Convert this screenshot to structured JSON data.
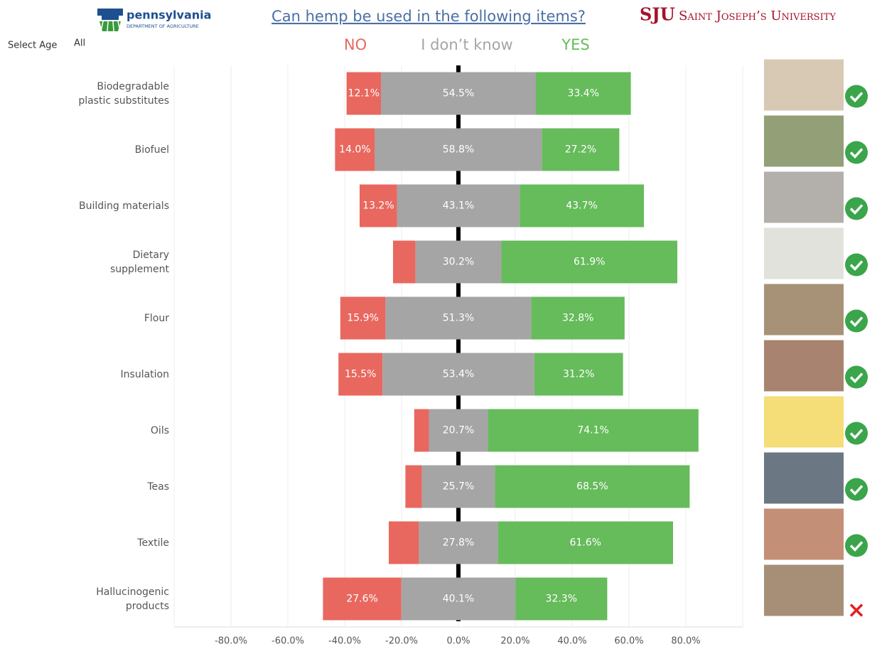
{
  "header": {
    "logo_left": "pennsylvania",
    "logo_left_sub": "DEPARTMENT OF AGRICULTURE",
    "logo_right": "SJU",
    "logo_right_name": "Saint Joseph’s University"
  },
  "filter": {
    "label": "Select Age",
    "value": "All"
  },
  "chart_data": {
    "type": "bar",
    "orientation": "horizontal",
    "layout": "diverging",
    "title": "Can hemp be used in the following items?",
    "categories": [
      "Biodegradable\nplastic substitutes",
      "Biofuel",
      "Building materials",
      "Dietary\nsupplement",
      "Flour",
      "Insulation",
      "Oils",
      "Teas",
      "Textile",
      "Hallucinogenic\nproducts"
    ],
    "series": [
      {
        "name": "NO",
        "color": "#e8685f",
        "values": [
          12.1,
          14.0,
          13.2,
          7.9,
          15.9,
          15.5,
          5.2,
          5.8,
          10.6,
          27.6
        ],
        "value_labels": [
          "12.1%",
          "14.0%",
          "13.2%",
          null,
          "15.9%",
          "15.5%",
          null,
          null,
          null,
          "27.6%"
        ]
      },
      {
        "name": "I don’t know",
        "color": "#a5a5a5",
        "values": [
          54.5,
          58.8,
          43.1,
          30.2,
          51.3,
          53.4,
          20.7,
          25.7,
          27.8,
          40.1
        ],
        "value_labels": [
          "54.5%",
          "58.8%",
          "43.1%",
          "30.2%",
          "51.3%",
          "53.4%",
          "20.7%",
          "25.7%",
          "27.8%",
          "40.1%"
        ]
      },
      {
        "name": "YES",
        "color": "#66bb5b",
        "values": [
          33.4,
          27.2,
          43.7,
          61.9,
          32.8,
          31.2,
          74.1,
          68.5,
          61.6,
          32.3
        ],
        "value_labels": [
          "33.4%",
          "27.2%",
          "43.7%",
          "61.9%",
          "32.8%",
          "31.2%",
          "74.1%",
          "68.5%",
          "61.6%",
          "32.3%"
        ]
      }
    ],
    "xlim": [
      -100,
      100
    ],
    "xticks": [
      {
        "value": -80,
        "label": "-80.0%"
      },
      {
        "value": -60,
        "label": "-60.0%"
      },
      {
        "value": -40,
        "label": "-40.0%"
      },
      {
        "value": -20,
        "label": "-20.0%"
      },
      {
        "value": 0,
        "label": "0.0%"
      },
      {
        "value": 20,
        "label": "20.0%"
      },
      {
        "value": 40,
        "label": "40.0%"
      },
      {
        "value": 60,
        "label": "60.0%"
      },
      {
        "value": 80,
        "label": "80.0%"
      }
    ],
    "grid": true
  }
}
